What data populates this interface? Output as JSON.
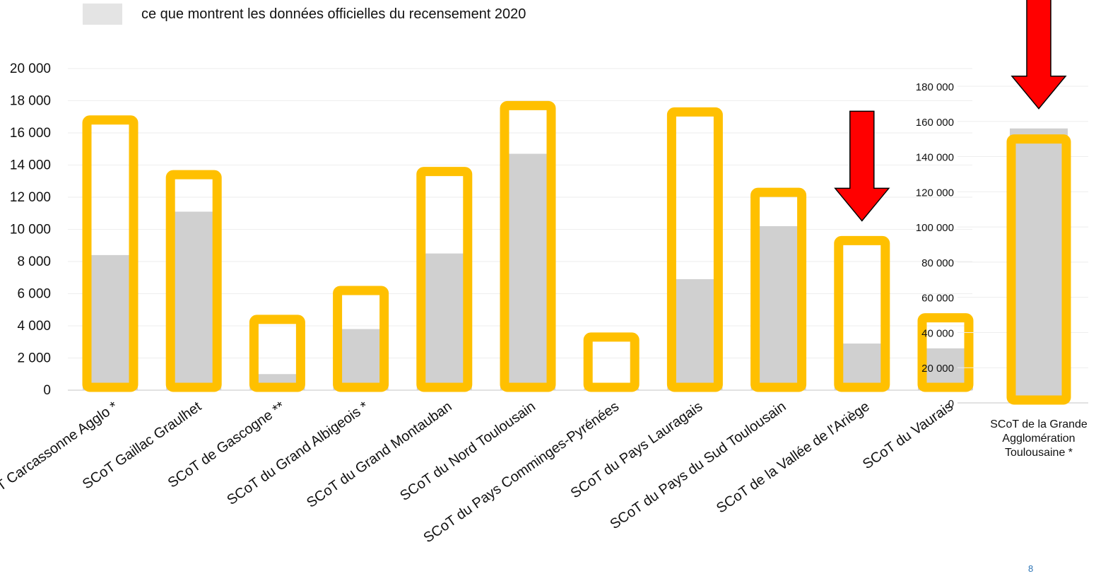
{
  "legend": {
    "label": "ce que montrent les données officielles du recensement 2020",
    "swatch_color": "#e4e4e4"
  },
  "page_number": "8",
  "colors": {
    "outline": "#ffc000",
    "fill": "#d0d0d0",
    "arrow": "#ff0000",
    "grid": "#eeeeee"
  },
  "chart_data": [
    {
      "type": "bar",
      "title": "",
      "xlabel": "",
      "ylabel": "",
      "ylim": [
        0,
        20000
      ],
      "yticks": [
        0,
        2000,
        4000,
        6000,
        8000,
        10000,
        12000,
        14000,
        16000,
        18000,
        20000
      ],
      "ytick_labels": [
        "0",
        "2 000",
        "4 000",
        "6 000",
        "8 000",
        "10 000",
        "12 000",
        "14 000",
        "16 000",
        "18 000",
        "20 000"
      ],
      "grid": true,
      "categories": [
        "SCoT Carcassonne Agglo *",
        "SCoT Gaillac Graulhet",
        "SCoT de Gascogne **",
        "SCoT du Grand Albigeois *",
        "SCoT du Grand Montauban",
        "SCoT du Nord Toulousain",
        "SCoT du Pays Comminges-Pyrénées",
        "SCoT du Pays Lauragais",
        "SCoT du Pays du Sud Toulousain",
        "SCoT de la Vallée de l'Ariège",
        "SCoT du Vaurais"
      ],
      "series": [
        {
          "name": "",
          "style": "outline",
          "values": [
            16800,
            13400,
            4400,
            6200,
            13600,
            17700,
            3300,
            17300,
            12300,
            9300,
            4500
          ]
        },
        {
          "name": "ce que montrent les données officielles du recensement 2020",
          "style": "filled",
          "values": [
            8400,
            11100,
            1000,
            3800,
            8500,
            14700,
            100,
            6900,
            10200,
            2900,
            2600
          ]
        }
      ],
      "annotations": [
        {
          "type": "arrow",
          "direction": "down",
          "category": "SCoT de la Vallée de l'Ariège"
        }
      ]
    },
    {
      "type": "bar",
      "title": "",
      "xlabel": "",
      "ylabel": "",
      "ylim": [
        0,
        180000
      ],
      "yticks": [
        0,
        20000,
        40000,
        60000,
        80000,
        100000,
        120000,
        140000,
        160000,
        180000
      ],
      "ytick_labels": [
        "0",
        "20 000",
        "40 000",
        "60 000",
        "80 000",
        "100 000",
        "120 000",
        "140 000",
        "160 000",
        "180 000"
      ],
      "grid": true,
      "categories": [
        "SCoT de la Grande Agglomération Toulousaine *"
      ],
      "category_lines": [
        [
          "SCoT de la Grande",
          "Agglomération",
          "Toulousaine *"
        ]
      ],
      "series": [
        {
          "name": "",
          "style": "outline",
          "values": [
            150000
          ]
        },
        {
          "name": "ce que montrent les données officielles du recensement 2020",
          "style": "filled",
          "values": [
            156000
          ]
        }
      ],
      "annotations": [
        {
          "type": "arrow",
          "direction": "down",
          "category": "SCoT de la Grande Agglomération Toulousaine *"
        }
      ]
    }
  ]
}
